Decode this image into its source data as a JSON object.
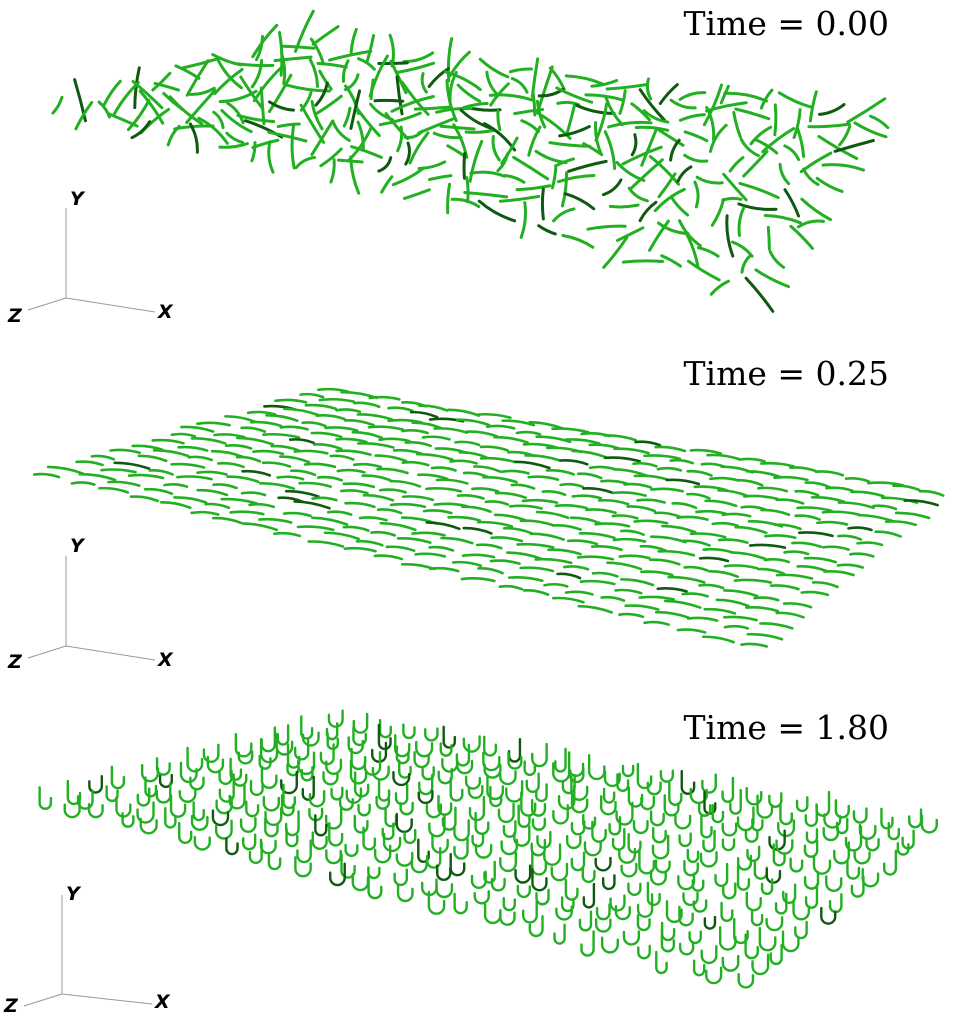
{
  "panels": [
    {
      "time_label": "Time = 0.00",
      "state": "random-orientation"
    },
    {
      "time_label": "Time = 0.25",
      "state": "aligned-flat"
    },
    {
      "time_label": "Time = 1.80",
      "state": "curled"
    }
  ],
  "axes": {
    "y": "Y",
    "z": "Z",
    "x": "X"
  },
  "colors": {
    "fiber": "#22b022",
    "fiber_dark": "#0f5a10",
    "axis": "#999999",
    "background": "#ffffff"
  }
}
